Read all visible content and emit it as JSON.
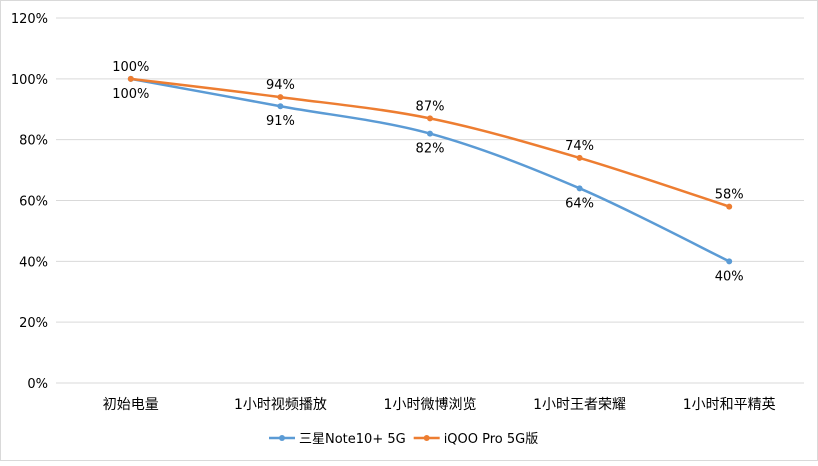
{
  "chart_data": {
    "type": "line",
    "smooth": true,
    "categories": [
      "初始电量",
      "1小时视频播放",
      "1小时微博浏览",
      "1小时王者荣耀",
      "1小时和平精英"
    ],
    "series": [
      {
        "name": "三星Note10+ 5G",
        "color": "#5B9BD5",
        "values": [
          100,
          91,
          82,
          64,
          40
        ],
        "labels": [
          "100%",
          "91%",
          "82%",
          "64%",
          "40%"
        ]
      },
      {
        "name": "iQOO Pro 5G版",
        "color": "#ED7D31",
        "values": [
          100,
          94,
          87,
          74,
          58
        ],
        "labels": [
          "100%",
          "94%",
          "87%",
          "74%",
          "58%"
        ]
      }
    ],
    "ylim": [
      0,
      120
    ],
    "yticks": [
      0,
      20,
      40,
      60,
      80,
      100,
      120
    ],
    "ytick_labels": [
      "0%",
      "20%",
      "40%",
      "60%",
      "80%",
      "100%",
      "120%"
    ],
    "grid": true,
    "legend": "bottom",
    "title": "",
    "xlabel": "",
    "ylabel": ""
  }
}
